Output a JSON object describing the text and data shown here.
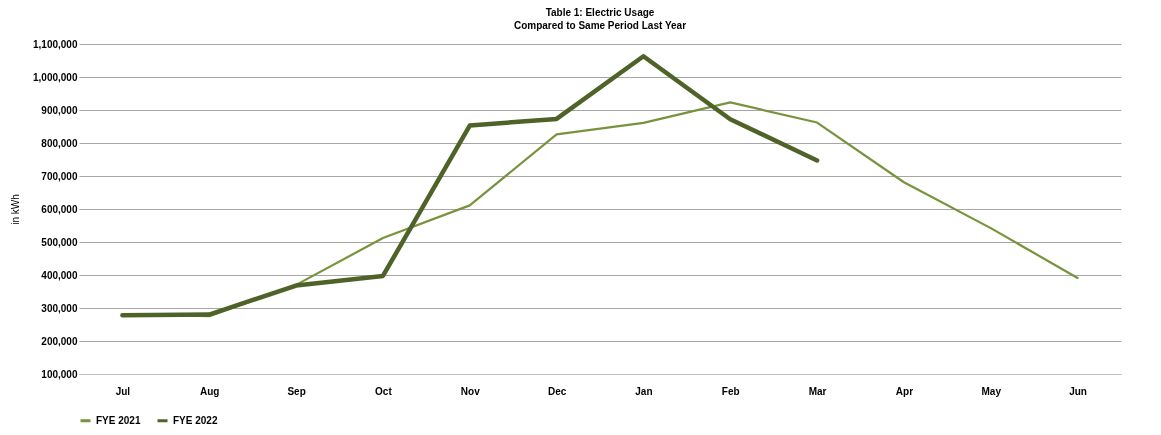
{
  "chart_data": {
    "type": "line",
    "title": "Table 1: Electric Usage",
    "subtitle": "Compared to Same Period Last Year",
    "ylabel": "in kWh",
    "categories": [
      "Jul",
      "Aug",
      "Sep",
      "Oct",
      "Nov",
      "Dec",
      "Jan",
      "Feb",
      "Mar",
      "Apr",
      "May",
      "Jun"
    ],
    "series": [
      {
        "name": "FYE 2021",
        "color": "#77933c",
        "values": [
          281000,
          275000,
          370000,
          512000,
          611000,
          826000,
          861000,
          923000,
          862000,
          681000,
          542000,
          391000
        ]
      },
      {
        "name": "FYE 2022",
        "color": "#4f6228",
        "values": [
          278000,
          280000,
          368000,
          397000,
          853000,
          873000,
          1063000,
          872000,
          747000,
          null,
          null,
          null
        ]
      }
    ],
    "ylim": [
      100000,
      1100000
    ],
    "yticks": [
      {
        "value": 100000,
        "label": "100,000"
      },
      {
        "value": 200000,
        "label": "200,000"
      },
      {
        "value": 300000,
        "label": "300,000"
      },
      {
        "value": 400000,
        "label": "400,000"
      },
      {
        "value": 500000,
        "label": "500,000"
      },
      {
        "value": 600000,
        "label": "600,000"
      },
      {
        "value": 700000,
        "label": "700,000"
      },
      {
        "value": 800000,
        "label": "800,000"
      },
      {
        "value": 900000,
        "label": "900,000"
      },
      {
        "value": 1000000,
        "label": "1,000,000"
      },
      {
        "value": 1100000,
        "label": "1,100,000"
      }
    ],
    "grid": "y",
    "legend": "bottom",
    "marker": "none",
    "line_style": "solid"
  }
}
